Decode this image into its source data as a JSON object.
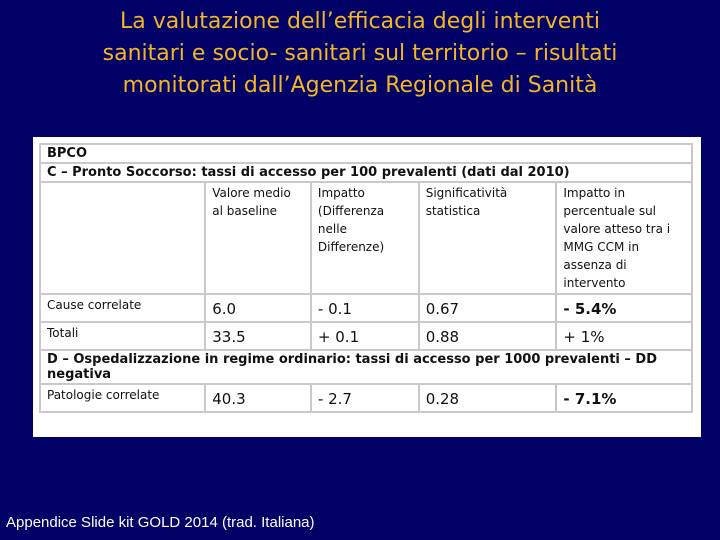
{
  "title": {
    "line1": "La valutazione dell’efficacia degli interventi",
    "line2": "sanitari e socio- sanitari sul territorio – risultati",
    "line3": "monitorati dall’Agenzia Regionale di Sanità"
  },
  "table": {
    "header": "BPCO",
    "section_c": "C – Pronto Soccorso: tassi di accesso per 100 prevalenti (dati dal 2010)",
    "columns": [
      "Valore medio al baseline",
      "Impatto (Differenza nelle Differenze)",
      "Significatività statistica",
      "Impatto in percentuale sul valore atteso tra i MMG CCM in assenza di intervento"
    ],
    "rows_c": [
      {
        "label": "Cause correlate",
        "baseline": "6.0",
        "impatto": "- 0.1",
        "signif": "0.67",
        "perc": "- 5.4%"
      },
      {
        "label": "Totali",
        "baseline": "33.5",
        "impatto": "+ 0.1",
        "signif": "0.88",
        "perc": "+ 1%"
      }
    ],
    "section_d": "D – Ospedalizzazione in regime ordinario: tassi di accesso per 1000 prevalenti – DD negativa",
    "rows_d": [
      {
        "label": "Patologie correlate",
        "baseline": "40.3",
        "impatto": "- 2.7",
        "signif": "0.28",
        "perc": "- 7.1%"
      }
    ]
  },
  "footer": "Appendice Slide kit GOLD 2014 (trad. Italiana)"
}
